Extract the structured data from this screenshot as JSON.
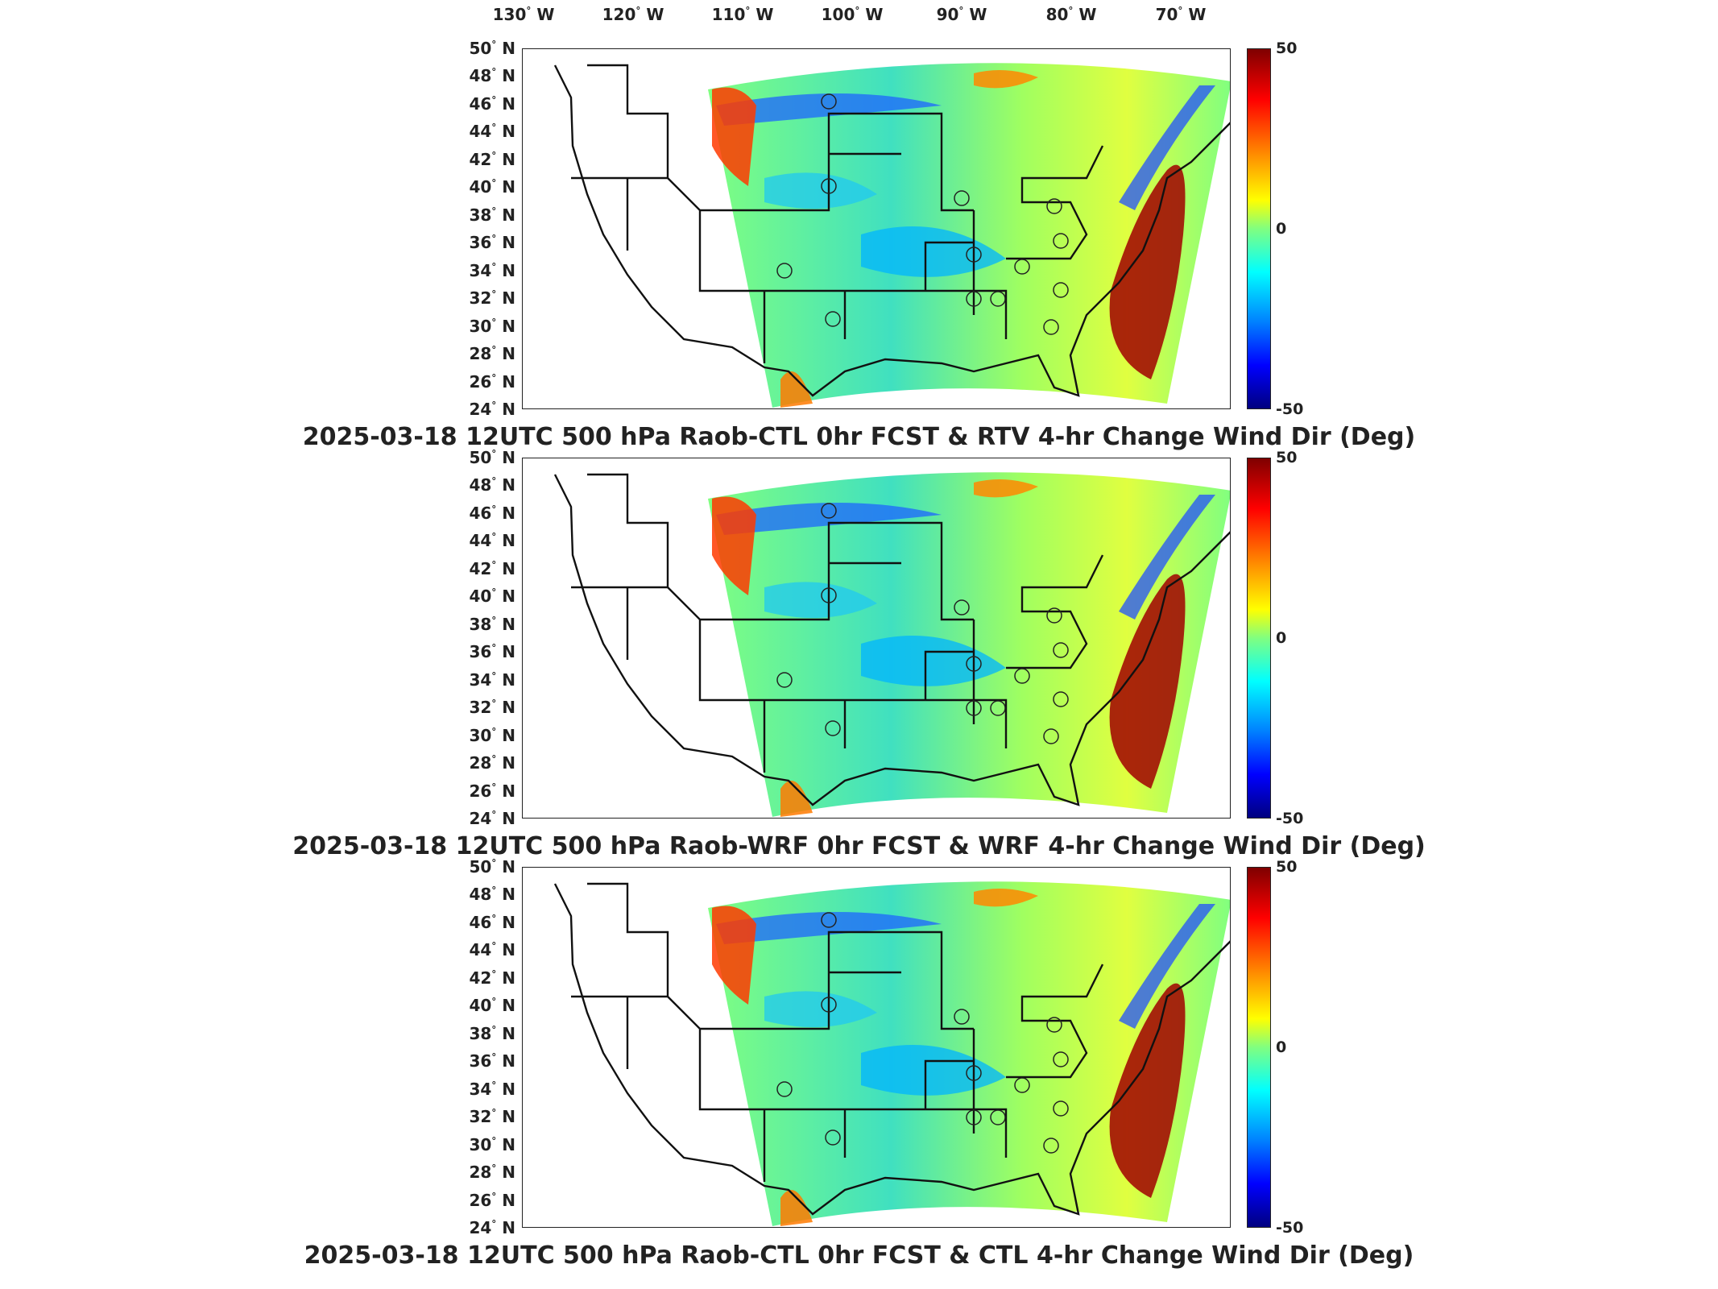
{
  "lon_labels": [
    "130",
    "120",
    "110",
    "100",
    "90",
    "80",
    "70"
  ],
  "lon_suffix": "W",
  "lat_labels": [
    "50",
    "48",
    "46",
    "44",
    "42",
    "40",
    "38",
    "36",
    "34",
    "32",
    "30",
    "28",
    "26",
    "24"
  ],
  "lat_suffix": "N",
  "colorbar": {
    "max": "50",
    "mid": "0",
    "min": "-50",
    "colors": [
      "#7f0000",
      "#ff0000",
      "#ff8000",
      "#ffff00",
      "#80ff80",
      "#00ffff",
      "#0080ff",
      "#0000ff",
      "#00007f"
    ]
  },
  "panels": [
    {
      "title": "2025-03-18 12UTC 500 hPa Raob-CTL 0hr FCST & RTV 4-hr Change Wind Dir (Deg)"
    },
    {
      "title": "2025-03-18 12UTC 500 hPa Raob-WRF 0hr FCST & WRF 4-hr Change Wind Dir (Deg)"
    },
    {
      "title": "2025-03-18 12UTC 500 hPa Raob-CTL 0hr FCST & CTL 4-hr Change Wind Dir (Deg)"
    }
  ]
}
